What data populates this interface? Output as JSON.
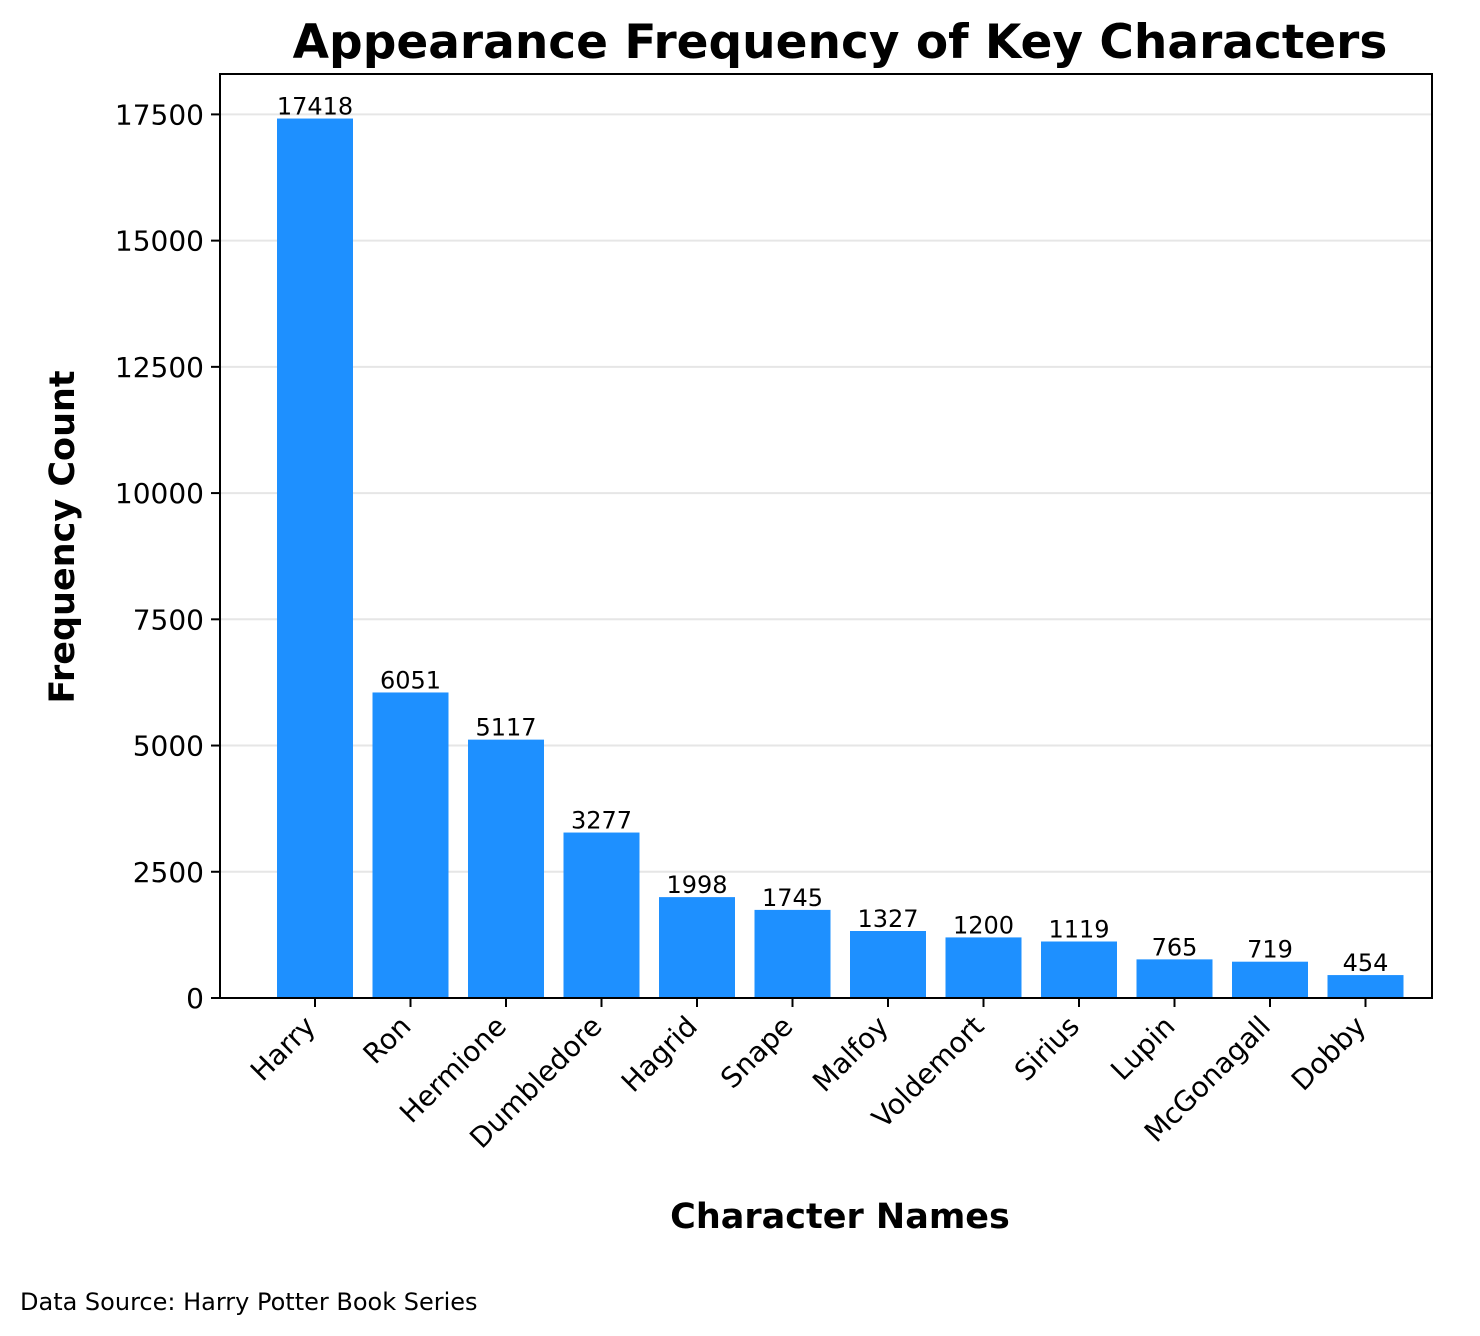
{
  "chart_data": {
    "type": "bar",
    "title": "Appearance Frequency of Key Characters",
    "xlabel": "Character Names",
    "ylabel": "Frequency Count",
    "categories": [
      "Harry",
      "Ron",
      "Hermione",
      "Dumbledore",
      "Hagrid",
      "Snape",
      "Malfoy",
      "Voldemort",
      "Sirius",
      "Lupin",
      "McGonagall",
      "Dobby"
    ],
    "values": [
      17418,
      6051,
      5117,
      3277,
      1998,
      1745,
      1327,
      1200,
      1119,
      765,
      719,
      454
    ],
    "data_labels": [
      "17418",
      "6051",
      "5117",
      "3277",
      "1998",
      "1745",
      "1327",
      "1200",
      "1119",
      "765",
      "719",
      "454"
    ],
    "ylim": [
      0,
      18300
    ],
    "yticks": [
      0,
      2500,
      5000,
      7500,
      10000,
      12500,
      15000,
      17500
    ],
    "ytick_labels": [
      "0",
      "2500",
      "5000",
      "7500",
      "10000",
      "12500",
      "15000",
      "17500"
    ],
    "grid": "y-axis, light gray",
    "legend": "none",
    "bar_color": "#1e90ff",
    "footnote": "Data Source: Harry Potter Book Series"
  }
}
